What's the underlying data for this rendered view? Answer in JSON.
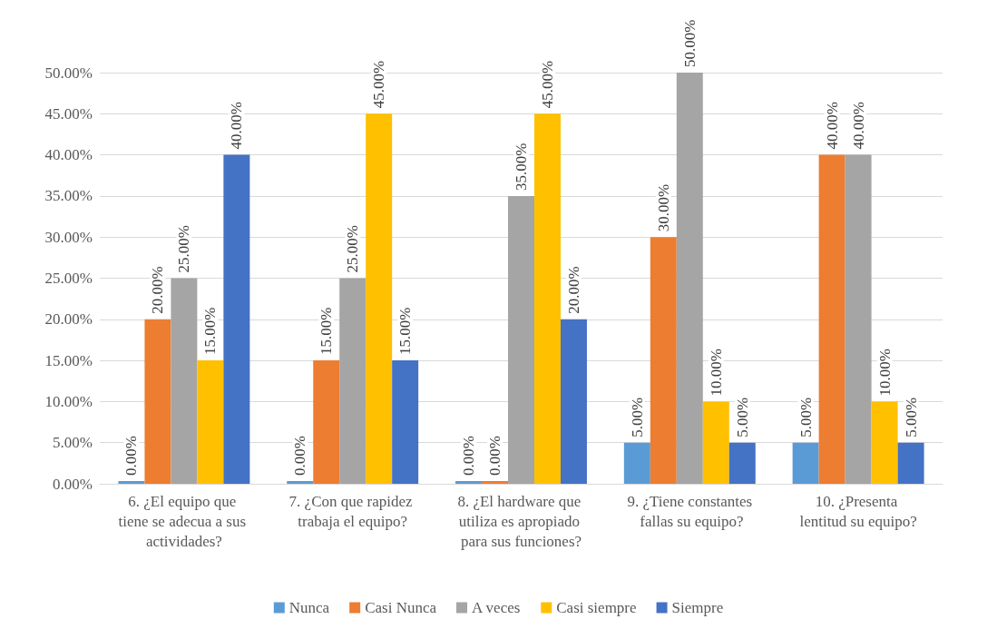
{
  "chart_data": {
    "type": "bar",
    "categories": [
      "6. ¿El equipo que tiene se adecua a sus actividades?",
      "7. ¿Con que rapidez trabaja el equipo?",
      "8. ¿El hardware que utiliza es apropiado para sus funciones?",
      "9. ¿Tiene constantes fallas su equipo?",
      "10. ¿Presenta lentitud su equipo?"
    ],
    "series": [
      {
        "name": "Nunca",
        "color": "#5b9bd5",
        "values": [
          0,
          0,
          0,
          5,
          5
        ],
        "value_labels": [
          "0.00%",
          "0.00%",
          "0.00%",
          "5.00%",
          "5.00%"
        ]
      },
      {
        "name": "Casi Nunca",
        "color": "#ed7d31",
        "values": [
          20,
          15,
          0,
          30,
          40
        ],
        "value_labels": [
          "20.00%",
          "15.00%",
          "0.00%",
          "30.00%",
          "40.00%"
        ]
      },
      {
        "name": "A veces",
        "color": "#a5a5a5",
        "values": [
          25,
          25,
          35,
          50,
          40
        ],
        "value_labels": [
          "25.00%",
          "25.00%",
          "35.00%",
          "50.00%",
          "40.00%"
        ]
      },
      {
        "name": "Casi siempre",
        "color": "#ffc000",
        "values": [
          15,
          45,
          45,
          10,
          10
        ],
        "value_labels": [
          "15.00%",
          "45.00%",
          "45.00%",
          "10.00%",
          "10.00%"
        ]
      },
      {
        "name": "Siempre",
        "color": "#4472c4",
        "values": [
          40,
          15,
          20,
          5,
          5
        ],
        "value_labels": [
          "40.00%",
          "15.00%",
          "20.00%",
          "5.00%",
          "5.00%"
        ]
      }
    ],
    "ylim": [
      0,
      50
    ],
    "yticks": [
      {
        "value": 0,
        "label": "0.00%"
      },
      {
        "value": 5,
        "label": "5.00%"
      },
      {
        "value": 10,
        "label": "10.00%"
      },
      {
        "value": 15,
        "label": "15.00%"
      },
      {
        "value": 20,
        "label": "20.00%"
      },
      {
        "value": 25,
        "label": "25.00%"
      },
      {
        "value": 30,
        "label": "30.00%"
      },
      {
        "value": 35,
        "label": "35.00%"
      },
      {
        "value": 40,
        "label": "40.00%"
      },
      {
        "value": 45,
        "label": "45.00%"
      },
      {
        "value": 50,
        "label": "50.00%"
      }
    ],
    "grid": "y",
    "legend": "bottom"
  }
}
